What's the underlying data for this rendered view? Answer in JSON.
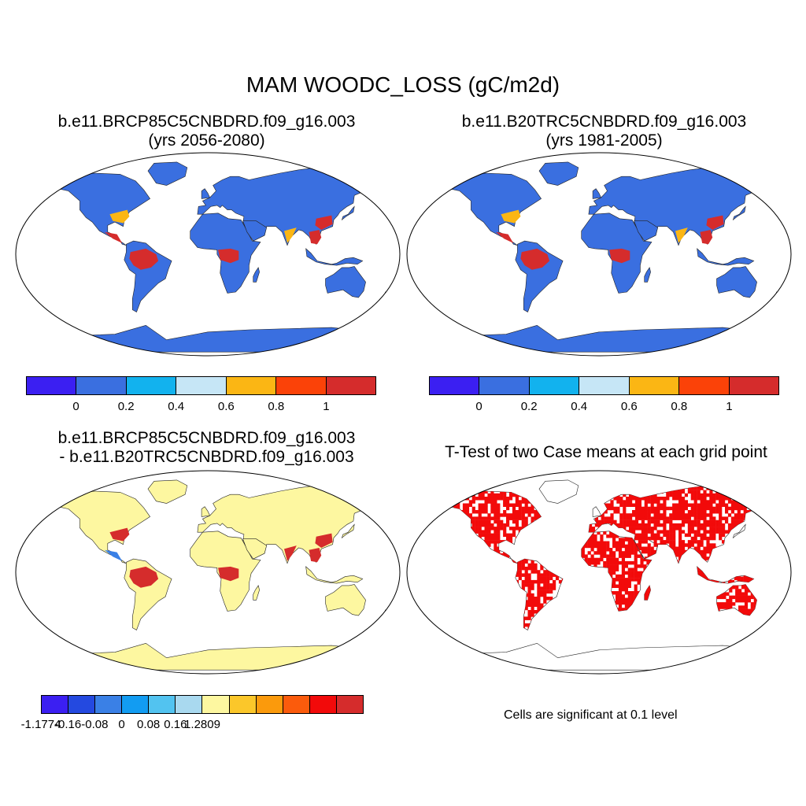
{
  "title": "MAM WOODC_LOSS (gC/m2d)",
  "panels": {
    "top_left": {
      "title_line1": "b.e11.BRCP85C5CNBDRD.f09_g16.003",
      "title_line2": "(yrs 2056-2080)"
    },
    "top_right": {
      "title_line1": "b.e11.B20TRC5CNBDRD.f09_g16.003",
      "title_line2": "(yrs 1981-2005)"
    },
    "bottom_left": {
      "title_line1": "b.e11.BRCP85C5CNBDRD.f09_g16.003",
      "title_line2": "- b.e11.B20TRC5CNBDRD.f09_g16.003"
    },
    "bottom_right": {
      "title_line1": "T-Test of two Case means at each grid point",
      "note": "Cells are significant at 0.1 level"
    }
  },
  "colorbars": {
    "case": {
      "colors": [
        "#3b1ff2",
        "#3a6fe0",
        "#12b2ee",
        "#c6e6f6",
        "#fbb614",
        "#fb4208",
        "#d52c2c"
      ],
      "labels": [
        "0",
        "0.2",
        "0.4",
        "0.6",
        "0.8",
        "1"
      ]
    },
    "diff": {
      "colors": [
        "#3b1ff2",
        "#2449e0",
        "#3a80e6",
        "#129cf2",
        "#52c3f0",
        "#a9d9ef",
        "#fdf7a0",
        "#fbc72a",
        "#fb9a0c",
        "#fb5b0c",
        "#f20a0a",
        "#d52c2c"
      ],
      "labels": [
        "-1.1774",
        "-0.16",
        "-0.08",
        "0",
        "0.08",
        "0.16",
        "1.2809"
      ]
    }
  },
  "map_colors": {
    "case_land": "#3a6fe0",
    "case_tropics": "#d52c2c",
    "case_transition": "#fbb614",
    "diff_land": "#fdf7a0",
    "diff_pos": "#d52c2c",
    "diff_neg": "#3a80e6",
    "sig": "#f20a0a"
  }
}
